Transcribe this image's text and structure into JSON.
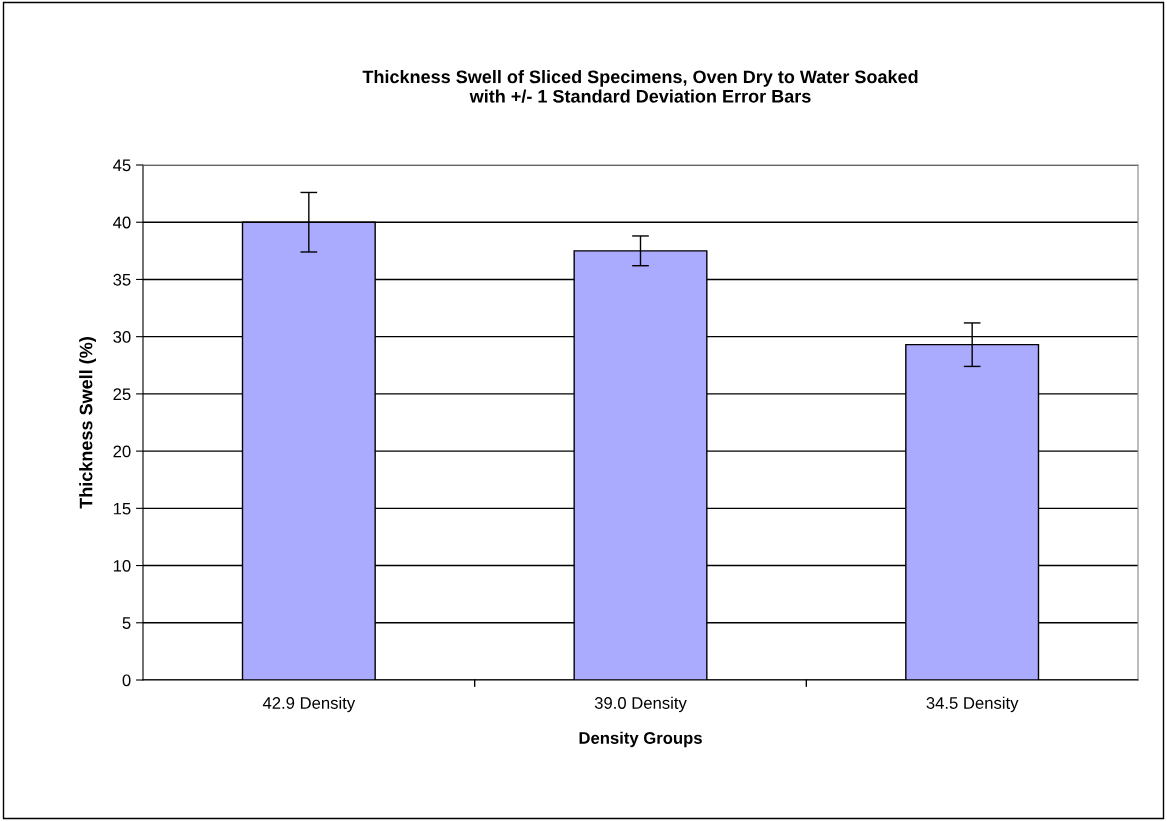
{
  "chart_data": {
    "type": "bar",
    "title": "Thickness Swell of Sliced Specimens, Oven Dry to Water Soaked\nwith +/- 1 Standard Deviation Error Bars",
    "xlabel": "Density Groups",
    "ylabel": "Thickness Swell (%)",
    "categories": [
      "42.9 Density",
      "39.0 Density",
      "34.5 Density"
    ],
    "values": [
      40.0,
      37.5,
      29.3
    ],
    "errors": [
      2.6,
      1.3,
      1.9
    ],
    "color": "#aaaaff",
    "ylim": [
      0,
      45
    ],
    "yticks": [
      0,
      5,
      10,
      15,
      20,
      25,
      30,
      35,
      40,
      45
    ],
    "grid": "y",
    "legend": false
  }
}
